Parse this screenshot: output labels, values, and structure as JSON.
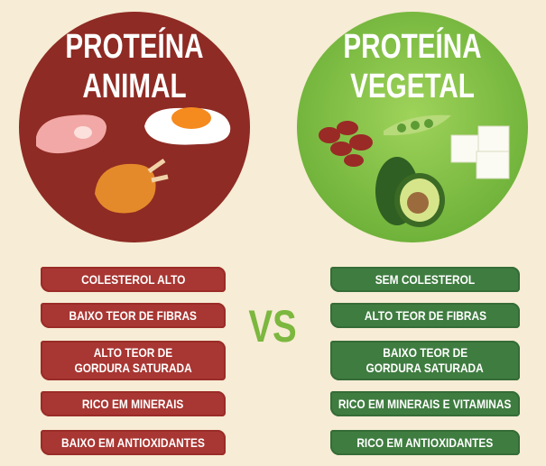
{
  "left": {
    "title": [
      "PROTEÍNA",
      "ANIMAL"
    ],
    "items": [
      [
        "COLESTEROL ALTO"
      ],
      [
        "BAIXO TEOR DE FIBRAS"
      ],
      [
        "ALTO TEOR DE",
        "GORDURA SATURADA"
      ],
      [
        "RICO EM MINERAIS"
      ],
      [
        "BAIXO EM ANTIOXIDANTES"
      ]
    ]
  },
  "right": {
    "title": [
      "PROTEÍNA",
      "VEGETAL"
    ],
    "items": [
      [
        "SEM COLESTEROL"
      ],
      [
        "ALTO TEOR DE FIBRAS"
      ],
      [
        "BAIXO TEOR DE",
        "GORDURA SATURADA"
      ],
      [
        "RICO EM MINERAIS E VITAMINAS"
      ],
      [
        "RICO EM ANTIOXIDANTES"
      ]
    ]
  },
  "vs": "VS"
}
